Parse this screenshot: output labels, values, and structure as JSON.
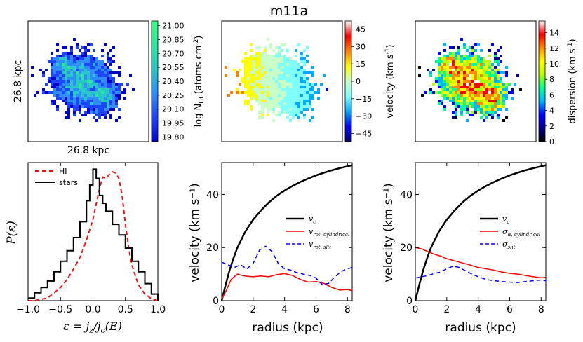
{
  "title": "m11a",
  "colors": {
    "hi": "#e31a1c",
    "stars": "#000000",
    "vc": "#000000",
    "vrot_cyl": "#ff0000",
    "vrot_slit": "#0000ff",
    "map_bg": "#ffffff"
  },
  "maps": {
    "hi_column": {
      "xlabel": "26.8 kpc",
      "ylabel": "26.8 kpc",
      "colorbar_label": "log N",
      "colorbar_label_sub": "HI",
      "colorbar_label_units": "(atoms cm",
      "colorbar_label_exp": "-2",
      "colorbar_label_end": ")",
      "ticks": [
        "21.00",
        "20.85",
        "20.70",
        "20.55",
        "20.40",
        "20.25",
        "20.10",
        "19.95",
        "19.80"
      ],
      "range": [
        19.75,
        21.05
      ],
      "colormap": [
        "#0000c8",
        "#1e46ff",
        "#2e8cff",
        "#28c8c8",
        "#2ee6a0",
        "#3cff82"
      ]
    },
    "velocity": {
      "colorbar_label": "velocity (km s",
      "colorbar_label_exp": "-1",
      "colorbar_label_end": ")",
      "ticks": [
        "45",
        "30",
        "15",
        "0",
        "−15",
        "−30",
        "−45"
      ],
      "range": [
        -52,
        52
      ],
      "colormap": [
        "#00006e",
        "#0000ff",
        "#00aaff",
        "#80ffff",
        "#c8ffc8",
        "#ffff00",
        "#ff8000",
        "#ff0000",
        "#ffffff"
      ]
    },
    "dispersion": {
      "colorbar_label": "dispersion (km s",
      "colorbar_label_exp": "-1",
      "colorbar_label_end": ")",
      "ticks": [
        "14",
        "12",
        "10",
        "8",
        "6",
        "4",
        "2",
        "0"
      ],
      "range": [
        0,
        15.5
      ],
      "colormap": [
        "#000000",
        "#00008c",
        "#0000ff",
        "#00b4ff",
        "#00ff96",
        "#b4ff00",
        "#ffff00",
        "#ff8c00",
        "#ff0000",
        "#ffffff"
      ]
    }
  },
  "chart_data": [
    {
      "type": "line",
      "panel": "epsilon-distribution",
      "xlabel": "ε = j_z / j_c(E)",
      "xlabel_parts": {
        "eps": "ε",
        "eq": " = ",
        "jz": "j",
        "z": "z",
        "slash": "/",
        "jc": "j",
        "c": "c",
        "E": "(E)"
      },
      "ylabel": "P(ε)",
      "xlim": [
        -1.0,
        1.0
      ],
      "ylim": [
        0,
        1.05
      ],
      "xticks": [
        "−1.0",
        "−0.5",
        "0.0",
        "0.5",
        "1.0"
      ],
      "xtick_values": [
        -1.0,
        -0.5,
        0.0,
        0.5,
        1.0
      ],
      "legend_position": "top-left",
      "series": [
        {
          "name": "HI",
          "style": "dashed",
          "x": [
            -1.0,
            -0.9,
            -0.8,
            -0.7,
            -0.6,
            -0.5,
            -0.4,
            -0.3,
            -0.2,
            -0.1,
            0.0,
            0.1,
            0.15,
            0.2,
            0.25,
            0.3,
            0.35,
            0.4,
            0.45,
            0.5,
            0.55,
            0.6,
            0.7,
            0.8,
            0.9,
            1.0
          ],
          "y": [
            0.0,
            0.0,
            0.01,
            0.02,
            0.06,
            0.1,
            0.16,
            0.24,
            0.33,
            0.46,
            0.62,
            0.85,
            0.94,
            0.93,
            0.96,
            0.98,
            0.97,
            0.93,
            0.8,
            0.58,
            0.4,
            0.27,
            0.12,
            0.05,
            0.015,
            0.0
          ]
        },
        {
          "name": "stars",
          "style": "step",
          "x": [
            -1.0,
            -0.9,
            -0.8,
            -0.7,
            -0.6,
            -0.5,
            -0.4,
            -0.3,
            -0.2,
            -0.1,
            -0.05,
            0.0,
            0.05,
            0.1,
            0.15,
            0.2,
            0.3,
            0.4,
            0.5,
            0.6,
            0.7,
            0.8,
            0.9,
            1.0
          ],
          "y": [
            0.02,
            0.06,
            0.1,
            0.15,
            0.22,
            0.3,
            0.38,
            0.48,
            0.6,
            0.76,
            0.88,
            1.0,
            0.93,
            0.8,
            0.74,
            0.68,
            0.58,
            0.5,
            0.4,
            0.3,
            0.22,
            0.13,
            0.05,
            0.0
          ]
        }
      ]
    },
    {
      "type": "line",
      "panel": "rotation-curve",
      "xlabel": "radius (kpc)",
      "ylabel": "velocity (km s⁻¹)",
      "xlim": [
        0,
        8.3
      ],
      "ylim": [
        0,
        52
      ],
      "xticks": [
        "0",
        "2",
        "4",
        "6",
        "8"
      ],
      "xtick_values": [
        0,
        2,
        4,
        6,
        8
      ],
      "yticks": [
        "0",
        "20",
        "40"
      ],
      "ytick_values": [
        0,
        20,
        40
      ],
      "legend_position": "center-right",
      "series": [
        {
          "name": "v_c",
          "legend_main": "v",
          "legend_sub": "c",
          "color_key": "vc",
          "style": "solid-thick",
          "x": [
            0,
            0.25,
            0.5,
            0.75,
            1,
            1.5,
            2,
            2.5,
            3,
            3.5,
            4,
            4.5,
            5,
            5.5,
            6,
            6.5,
            7,
            7.5,
            8,
            8.3
          ],
          "y": [
            0,
            6,
            11.5,
            16,
            20,
            26,
            30.5,
            34,
            37,
            39.5,
            41.5,
            43.2,
            44.7,
            46,
            47.2,
            48.2,
            49.1,
            49.9,
            50.6,
            51
          ]
        },
        {
          "name": "v_rot, cylindrical",
          "legend_main": "v",
          "legend_sub": "rot, cylindrical",
          "color_key": "vrot_cyl",
          "style": "solid",
          "x": [
            0,
            0.3,
            0.6,
            1.0,
            1.3,
            1.6,
            2.0,
            2.5,
            3.0,
            3.5,
            4.0,
            4.5,
            5.0,
            5.5,
            6.0,
            6.5,
            7.0,
            7.5,
            8.0,
            8.3
          ],
          "y": [
            0.5,
            4,
            8,
            10,
            9.5,
            9.2,
            9.0,
            9.3,
            9.0,
            9.8,
            10.2,
            9.5,
            8.0,
            7.0,
            7.2,
            6.5,
            5.0,
            4.0,
            4.2,
            3.8
          ]
        },
        {
          "name": "v_rot, slit",
          "legend_main": "v",
          "legend_sub": "rot, slit",
          "color_key": "vrot_slit",
          "style": "dashed",
          "x": [
            0,
            0.4,
            0.8,
            1.2,
            1.6,
            2.0,
            2.4,
            2.8,
            3.2,
            3.6,
            4.0,
            4.4,
            4.8,
            5.2,
            5.6,
            6.0,
            6.4,
            6.8,
            7.2,
            7.6,
            8.0,
            8.3
          ],
          "y": [
            14.5,
            13.5,
            12.5,
            13.5,
            12.0,
            14.0,
            19.0,
            20.5,
            18.5,
            14.0,
            12.0,
            11.5,
            10.5,
            10.0,
            9.5,
            8.5,
            6.0,
            6.5,
            9.0,
            11.0,
            12.0,
            12.5
          ]
        }
      ]
    },
    {
      "type": "line",
      "panel": "dispersion-curve",
      "xlabel": "radius (kpc)",
      "ylabel": "velocity (km s⁻¹)",
      "xlim": [
        0,
        8.3
      ],
      "ylim": [
        0,
        52
      ],
      "xticks": [
        "0",
        "2",
        "4",
        "6",
        "8"
      ],
      "xtick_values": [
        0,
        2,
        4,
        6,
        8
      ],
      "yticks": [
        "0",
        "20",
        "40"
      ],
      "ytick_values": [
        0,
        20,
        40
      ],
      "legend_position": "center-right",
      "series": [
        {
          "name": "v_c",
          "legend_main": "v",
          "legend_sub": "c",
          "color_key": "vc",
          "style": "solid-thick",
          "x": [
            0,
            0.25,
            0.5,
            0.75,
            1,
            1.5,
            2,
            2.5,
            3,
            3.5,
            4,
            4.5,
            5,
            5.5,
            6,
            6.5,
            7,
            7.5,
            8,
            8.3
          ],
          "y": [
            0,
            6,
            11.5,
            16,
            20,
            26,
            30.5,
            34,
            37,
            39.5,
            41.5,
            43.2,
            44.7,
            46,
            47.2,
            48.2,
            49.1,
            49.9,
            50.6,
            51
          ]
        },
        {
          "name": "σ_φ, cylindrical",
          "legend_main": "σ",
          "legend_sub": "φ, cylindrical",
          "color_key": "vrot_cyl",
          "style": "solid",
          "x": [
            0,
            0.4,
            0.8,
            1.2,
            1.6,
            2.0,
            2.5,
            3.0,
            3.5,
            4.0,
            4.5,
            5.0,
            5.5,
            6.0,
            6.5,
            7.0,
            7.5,
            8.0,
            8.3
          ],
          "y": [
            20,
            19.5,
            18.5,
            17.5,
            16.8,
            15.8,
            15,
            14.2,
            13.4,
            12.5,
            12,
            11.5,
            10.8,
            10.3,
            10,
            9.5,
            9,
            8.6,
            8.8
          ]
        },
        {
          "name": "σ_slit",
          "legend_main": "σ",
          "legend_sub": "slit",
          "color_key": "vrot_slit",
          "style": "dashed",
          "x": [
            0,
            0.4,
            0.8,
            1.2,
            1.6,
            2.0,
            2.4,
            2.8,
            3.2,
            3.6,
            4.0,
            4.5,
            5.0,
            5.5,
            6.0,
            6.5,
            7.0,
            7.5,
            8.0,
            8.3
          ],
          "y": [
            8.5,
            9.0,
            9.5,
            10.2,
            10.8,
            12.0,
            13.0,
            12.5,
            11.2,
            10.0,
            9.0,
            8.0,
            7.5,
            7.2,
            7.0,
            6.8,
            7.2,
            7.5,
            7.8,
            7.5
          ]
        }
      ]
    }
  ]
}
